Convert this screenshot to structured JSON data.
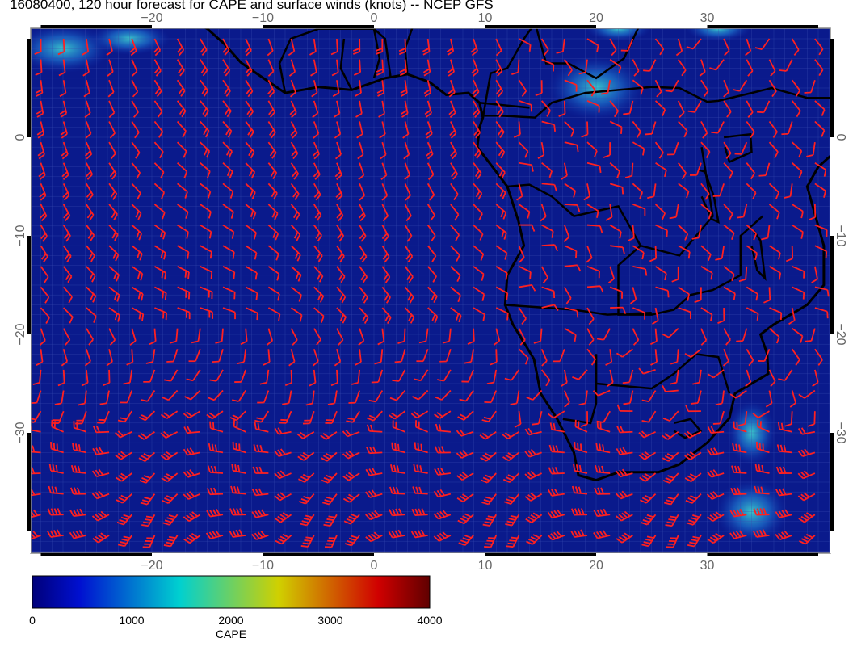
{
  "title": "16080400, 120 hour forecast for CAPE and surface winds (knots) -- NCEP GFS",
  "map": {
    "lon_range": [
      -31,
      41
    ],
    "lat_range": [
      -43,
      11.5
    ],
    "lon_ticks": [
      -20,
      -10,
      0,
      10,
      20,
      30
    ],
    "lat_ticks": [
      0,
      -10,
      -20,
      -30
    ],
    "lon_tick_labels": [
      "−20",
      "−10",
      "0",
      "10",
      "20",
      "30"
    ],
    "lat_tick_labels": [
      "0",
      "−10",
      "−20",
      "−30"
    ],
    "background_color": "#0a1a8c",
    "coastline_color": "#000000",
    "wind_barb_color": "#ff2020"
  },
  "colorbar": {
    "label": "CAPE",
    "ticks": [
      "0",
      "1000",
      "2000",
      "3000",
      "4000"
    ],
    "range": [
      0,
      4000
    ],
    "colors": [
      "#00007a",
      "#0010d0",
      "#00d0d0",
      "#d0d000",
      "#d00000",
      "#600000"
    ]
  }
}
